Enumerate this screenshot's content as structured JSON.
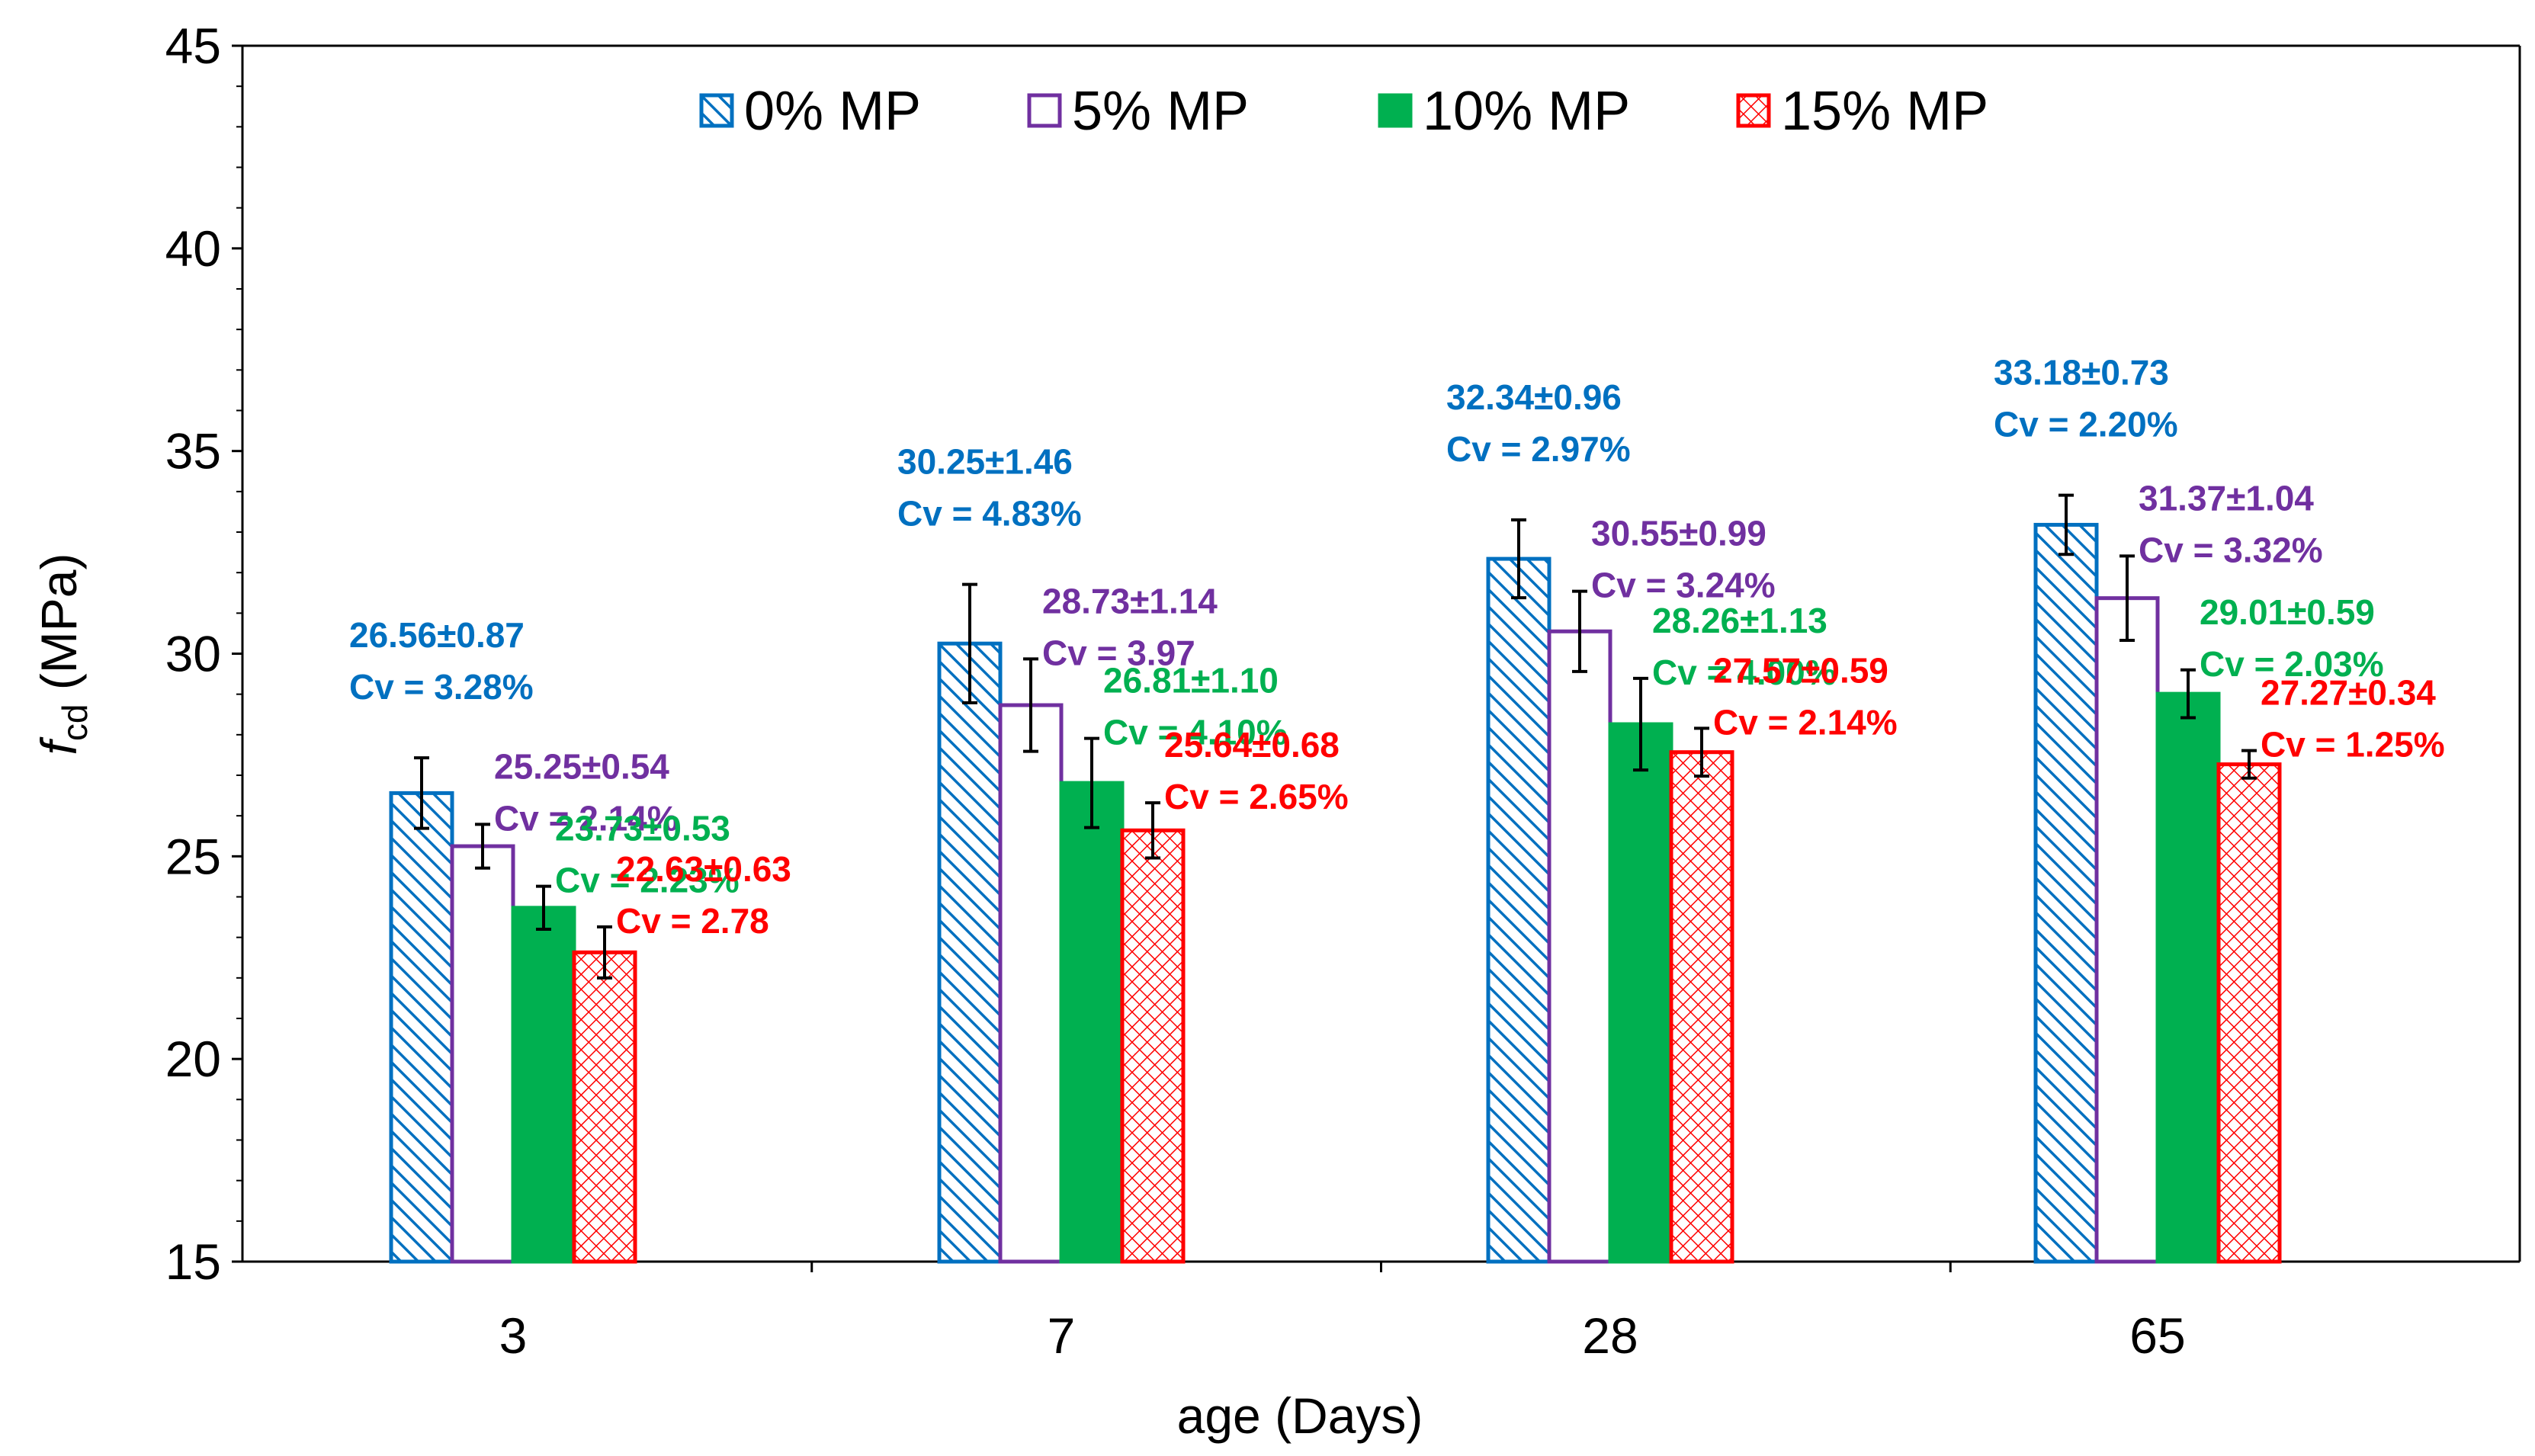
{
  "chart_data": {
    "type": "bar",
    "categories": [
      "3",
      "7",
      "28",
      "65"
    ],
    "xlabel": "age (Days)",
    "ylabel": {
      "main": "f",
      "subscript": "cd",
      "unit": " (MPa)"
    },
    "ylim": [
      15,
      45
    ],
    "yticks": [
      "15",
      "20",
      "25",
      "30",
      "35",
      "40",
      "45"
    ],
    "grid": false,
    "legend_position": "top-center",
    "series": [
      {
        "name": "0% MP",
        "color": "#0070C0",
        "pattern": "diagonal-hatch",
        "values": [
          26.56,
          30.25,
          32.34,
          33.18
        ],
        "errors": [
          0.87,
          1.46,
          0.96,
          0.73
        ],
        "labels": [
          [
            "26.56±0.87",
            "Cv = 3.28%"
          ],
          [
            "30.25±1.46",
            "Cv = 4.83%"
          ],
          [
            "32.34±0.96",
            "Cv = 2.97%"
          ],
          [
            "33.18±0.73",
            "Cv = 2.20%"
          ]
        ]
      },
      {
        "name": "5% MP",
        "color": "#7030A0",
        "pattern": "hollow",
        "values": [
          25.25,
          28.73,
          30.55,
          31.37
        ],
        "errors": [
          0.54,
          1.14,
          0.99,
          1.04
        ],
        "labels": [
          [
            "25.25±0.54",
            "Cv = 2.14%"
          ],
          [
            "28.73±1.14",
            "Cv = 3.97"
          ],
          [
            "30.55±0.99",
            "Cv = 3.24%"
          ],
          [
            "31.37±1.04",
            "Cv = 3.32%"
          ]
        ]
      },
      {
        "name": "10% MP",
        "color": "#00B050",
        "pattern": "solid",
        "values": [
          23.73,
          26.81,
          28.26,
          29.01
        ],
        "errors": [
          0.53,
          1.1,
          1.13,
          0.59
        ],
        "labels": [
          [
            "23.73±0.53",
            "Cv = 2.23%"
          ],
          [
            "26.81±1.10",
            "Cv = 4.10%"
          ],
          [
            "28.26±1.13",
            "Cv = 4.00%"
          ],
          [
            "29.01±0.59",
            "Cv = 2.03%"
          ]
        ]
      },
      {
        "name": "15% MP",
        "color": "#FF0000",
        "pattern": "crosshatch",
        "values": [
          22.63,
          25.64,
          27.57,
          27.27
        ],
        "errors": [
          0.63,
          0.68,
          0.59,
          0.34
        ],
        "labels": [
          [
            "22.63±0.63",
            "Cv = 2.78"
          ],
          [
            "25.64±0.68",
            "Cv = 2.65%"
          ],
          [
            "27.57±0.59",
            "Cv = 2.14%"
          ],
          [
            "27.27±0.34",
            "Cv = 1.25%"
          ]
        ]
      }
    ]
  }
}
